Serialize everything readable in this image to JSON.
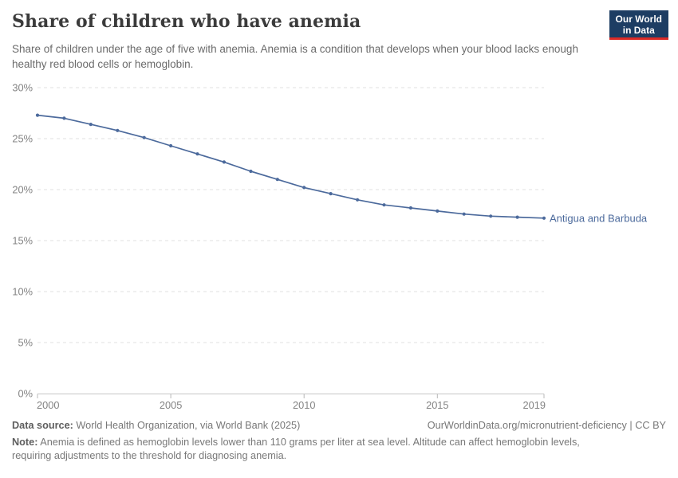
{
  "header": {
    "title": "Share of children who have anemia",
    "subtitle": "Share of children under the age of five with anemia. Anemia is a condition that develops when your blood lacks enough healthy red blood cells or hemoglobin.",
    "logo": {
      "line1": "Our World",
      "line2": "in Data"
    }
  },
  "chart_data": {
    "type": "line",
    "title": "Share of children who have anemia",
    "x": [
      2000,
      2001,
      2002,
      2003,
      2004,
      2005,
      2006,
      2007,
      2008,
      2009,
      2010,
      2011,
      2012,
      2013,
      2014,
      2015,
      2016,
      2017,
      2018,
      2019
    ],
    "series": [
      {
        "name": "Antigua and Barbuda",
        "values": [
          27.3,
          27.0,
          26.4,
          25.8,
          25.1,
          24.3,
          23.5,
          22.7,
          21.8,
          21.0,
          20.2,
          19.6,
          19.0,
          18.5,
          18.2,
          17.9,
          17.6,
          17.4,
          17.3,
          17.2
        ]
      }
    ],
    "xlabel": "",
    "ylabel": "",
    "ylim": [
      0,
      30
    ],
    "yticks": [
      0,
      5,
      10,
      15,
      20,
      25,
      30
    ],
    "ytick_suffix": "%",
    "xticks": [
      2000,
      2005,
      2010,
      2015,
      2019
    ],
    "grid": "horizontal-dashed",
    "legend_position": "end-of-line"
  },
  "footer": {
    "source_label": "Data source:",
    "source_text": "World Health Organization, via World Bank (2025)",
    "attribution": "OurWorldinData.org/micronutrient-deficiency | CC BY",
    "note_label": "Note:",
    "note_text": "Anemia is defined as hemoglobin levels lower than 110 grams per liter at sea level. Altitude can affect hemoglobin levels, requiring adjustments to the threshold for diagnosing anemia."
  },
  "colors": {
    "line": "#4c6a9c",
    "series_label": "#4c6a9c",
    "grid": "#e2e2e2",
    "axis": "#c6c6c6",
    "tick_mark": "#b8b8b8",
    "tick_text": "#838383",
    "title": "#3b3b3b",
    "subtitle": "#6b6b6b",
    "footer": "#787878",
    "logo_bg": "#1d3d63",
    "logo_red": "#dc2a26"
  }
}
